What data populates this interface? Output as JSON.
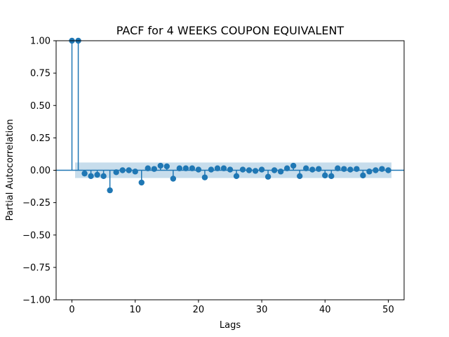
{
  "chart_data": {
    "type": "scatter",
    "subtype": "stem",
    "title": "PACF for 4 WEEKS COUPON EQUIVALENT",
    "xlabel": "Lags",
    "ylabel": "Partial Autocorrelation",
    "xlim": [
      -2.5,
      52.5
    ],
    "ylim": [
      -1.0,
      1.0
    ],
    "xticks": [
      0,
      10,
      20,
      30,
      40,
      50
    ],
    "yticks": [
      -1.0,
      -0.75,
      -0.5,
      -0.25,
      0.0,
      0.25,
      0.5,
      0.75,
      1.0
    ],
    "xtick_labels": [
      "0",
      "10",
      "20",
      "30",
      "40",
      "50"
    ],
    "ytick_labels": [
      "−1.00",
      "−0.75",
      "−0.50",
      "−0.25",
      "0.00",
      "0.25",
      "0.50",
      "0.75",
      "1.00"
    ],
    "grid": false,
    "confidence_band": {
      "lower": -0.06,
      "upper": 0.06,
      "from_lag": 0.5,
      "to_lag": 50.5
    },
    "lags": [
      0,
      1,
      2,
      3,
      4,
      5,
      6,
      7,
      8,
      9,
      10,
      11,
      12,
      13,
      14,
      15,
      16,
      17,
      18,
      19,
      20,
      21,
      22,
      23,
      24,
      25,
      26,
      27,
      28,
      29,
      30,
      31,
      32,
      33,
      34,
      35,
      36,
      37,
      38,
      39,
      40,
      41,
      42,
      43,
      44,
      45,
      46,
      47,
      48,
      49,
      50
    ],
    "values": [
      1.0,
      1.0,
      -0.025,
      -0.045,
      -0.035,
      -0.045,
      -0.155,
      -0.015,
      0.0,
      0.0,
      -0.01,
      -0.095,
      0.015,
      0.01,
      0.035,
      0.03,
      -0.065,
      0.015,
      0.015,
      0.015,
      0.005,
      -0.055,
      0.005,
      0.015,
      0.015,
      0.005,
      -0.045,
      0.005,
      0.0,
      -0.005,
      0.005,
      -0.05,
      0.0,
      -0.01,
      0.015,
      0.035,
      -0.045,
      0.015,
      0.005,
      0.01,
      -0.04,
      -0.045,
      0.015,
      0.01,
      0.005,
      0.01,
      -0.04,
      -0.01,
      0.0,
      0.01,
      0.0
    ],
    "colors": {
      "stem": "#1f77b4",
      "band": "#1f77b4",
      "zero_line": "#1f77b4"
    }
  }
}
